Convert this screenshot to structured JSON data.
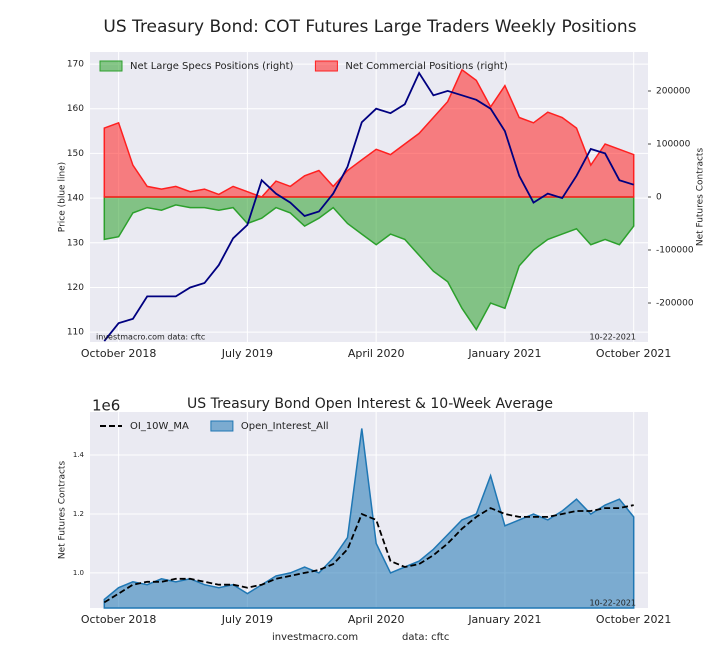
{
  "chart_data": [
    {
      "type": "line",
      "title": "US Treasury Bond: COT Futures Large Traders Weekly Positions",
      "ylabel": "Price (blue line)",
      "y2label": "Net Futures Contracts",
      "x": [
        "2018-09",
        "2018-10",
        "2018-11",
        "2018-12",
        "2019-01",
        "2019-02",
        "2019-03",
        "2019-04",
        "2019-05",
        "2019-06",
        "2019-07",
        "2019-08",
        "2019-09",
        "2019-10",
        "2019-11",
        "2019-12",
        "2020-01",
        "2020-02",
        "2020-03",
        "2020-04",
        "2020-05",
        "2020-06",
        "2020-07",
        "2020-08",
        "2020-09",
        "2020-10",
        "2020-11",
        "2020-12",
        "2021-01",
        "2021-02",
        "2021-03",
        "2021-04",
        "2021-05",
        "2021-06",
        "2021-07",
        "2021-08",
        "2021-09",
        "2021-10"
      ],
      "xlim": [
        "2018-08",
        "2021-11"
      ],
      "xticks": [
        {
          "value": "2018-10",
          "label": "October 2018"
        },
        {
          "value": "2019-07",
          "label": "July 2019"
        },
        {
          "value": "2020-04",
          "label": "April 2020"
        },
        {
          "value": "2021-01",
          "label": "January 2021"
        },
        {
          "value": "2021-10",
          "label": "October 2021"
        }
      ],
      "ylim": [
        107.8,
        172.7
      ],
      "yticks": [
        110,
        120,
        130,
        140,
        150,
        160,
        170
      ],
      "y2lim": [
        -273600,
        273600
      ],
      "y2ticks": [
        -200000,
        -100000,
        0,
        100000,
        200000
      ],
      "grid": true,
      "legend": "upper left",
      "series": [
        {
          "name": "Net Large Specs Positions (right)",
          "color": "#2ca02c",
          "kind": "area",
          "axis": "y2",
          "values": [
            -80000,
            -75000,
            -30000,
            -20000,
            -25000,
            -15000,
            -20000,
            -20000,
            -25000,
            -20000,
            -50000,
            -40000,
            -20000,
            -30000,
            -55000,
            -40000,
            -20000,
            -50000,
            -70000,
            -90000,
            -70000,
            -80000,
            -110000,
            -140000,
            -160000,
            -210000,
            -250000,
            -200000,
            -210000,
            -130000,
            -100000,
            -80000,
            -70000,
            -60000,
            -90000,
            -80000,
            -90000,
            -55000
          ]
        },
        {
          "name": "Net Commercial Positions (right)",
          "color": "#ff2020",
          "kind": "area",
          "axis": "y2",
          "values": [
            130000,
            140000,
            60000,
            20000,
            15000,
            20000,
            10000,
            15000,
            5000,
            20000,
            10000,
            0,
            30000,
            20000,
            40000,
            50000,
            20000,
            50000,
            70000,
            90000,
            80000,
            100000,
            120000,
            150000,
            180000,
            240000,
            220000,
            170000,
            210000,
            150000,
            140000,
            160000,
            150000,
            130000,
            60000,
            100000,
            90000,
            80000
          ]
        },
        {
          "color": "#000080",
          "kind": "line",
          "values": [
            108,
            112,
            113,
            118,
            118,
            118,
            120,
            121,
            125,
            131,
            134,
            144,
            141,
            139,
            136,
            137,
            141,
            147,
            157,
            160,
            159,
            161,
            168,
            163,
            164,
            163,
            162,
            160,
            155,
            145,
            139,
            141,
            140,
            145,
            151,
            150,
            144,
            143
          ]
        }
      ],
      "annotations": [
        "investmacro.com   data: cftc",
        "10-22-2021"
      ]
    },
    {
      "type": "line",
      "title": "US Treasury Bond Open Interest & 10-Week Average",
      "offset_label": "1e6",
      "ylabel": "Net Futures Contracts",
      "x": [
        "2018-09",
        "2018-10",
        "2018-11",
        "2018-12",
        "2019-01",
        "2019-02",
        "2019-03",
        "2019-04",
        "2019-05",
        "2019-06",
        "2019-07",
        "2019-08",
        "2019-09",
        "2019-10",
        "2019-11",
        "2019-12",
        "2020-01",
        "2020-02",
        "2020-03",
        "2020-04",
        "2020-05",
        "2020-06",
        "2020-07",
        "2020-08",
        "2020-09",
        "2020-10",
        "2020-11",
        "2020-12",
        "2021-01",
        "2021-02",
        "2021-03",
        "2021-04",
        "2021-05",
        "2021-06",
        "2021-07",
        "2021-08",
        "2021-09",
        "2021-10"
      ],
      "xlim": [
        "2018-08",
        "2021-11"
      ],
      "xticks": [
        {
          "value": "2018-10",
          "label": "October 2018"
        },
        {
          "value": "2019-07",
          "label": "July 2019"
        },
        {
          "value": "2020-04",
          "label": "April 2020"
        },
        {
          "value": "2021-01",
          "label": "January 2021"
        },
        {
          "value": "2021-10",
          "label": "October 2021"
        }
      ],
      "ylim": [
        0.881,
        1.546
      ],
      "yticks": [
        {
          "value": 1.0,
          "label": "1.0"
        },
        {
          "value": 1.2,
          "label": "1.2"
        },
        {
          "value": 1.4,
          "label": "1.4"
        }
      ],
      "grid": true,
      "legend": "upper left",
      "series": [
        {
          "name": "OI_10W_MA",
          "color": "#000000",
          "kind": "line",
          "linestyle": "dashed",
          "values": [
            0.9,
            0.93,
            0.96,
            0.97,
            0.97,
            0.98,
            0.98,
            0.97,
            0.96,
            0.96,
            0.95,
            0.96,
            0.98,
            0.99,
            1.0,
            1.01,
            1.03,
            1.08,
            1.2,
            1.18,
            1.04,
            1.02,
            1.03,
            1.06,
            1.1,
            1.15,
            1.19,
            1.22,
            1.2,
            1.19,
            1.19,
            1.19,
            1.2,
            1.21,
            1.21,
            1.22,
            1.22,
            1.23
          ]
        },
        {
          "name": "Open_Interest_All",
          "color": "#1f77b4",
          "kind": "area",
          "values": [
            0.91,
            0.95,
            0.97,
            0.96,
            0.98,
            0.97,
            0.98,
            0.96,
            0.95,
            0.96,
            0.93,
            0.96,
            0.99,
            1.0,
            1.02,
            1.0,
            1.05,
            1.12,
            1.49,
            1.1,
            1.0,
            1.02,
            1.04,
            1.08,
            1.13,
            1.18,
            1.2,
            1.33,
            1.16,
            1.18,
            1.2,
            1.18,
            1.21,
            1.25,
            1.2,
            1.23,
            1.25,
            1.19
          ]
        }
      ],
      "annotations": [
        "10-22-2021"
      ],
      "footer": [
        "investmacro.com",
        "data: cftc"
      ]
    }
  ]
}
